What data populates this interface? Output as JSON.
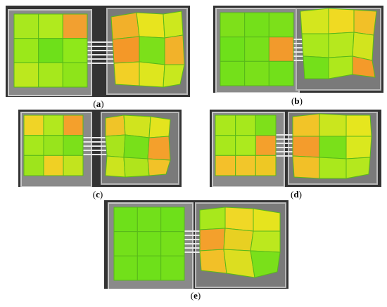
{
  "figure": {
    "panels": [
      {
        "id": "a",
        "caption": "a",
        "left_grid": [
          [
            "#a8e81e",
            "#b0ea1e",
            "#f2a030"
          ],
          [
            "#9be81a",
            "#6ee01a",
            "#8fe81a"
          ],
          [
            "#bce81e",
            "#a6e81c",
            "#8ee41a"
          ]
        ],
        "right_grid": [
          [
            "#f2b02a",
            "#e8e41e",
            "#cde81e"
          ],
          [
            "#f49828",
            "#7ce01a",
            "#f2b22a"
          ],
          [
            "#f2d026",
            "#dee61e",
            "#c8e81e"
          ]
        ]
      },
      {
        "id": "b",
        "caption": "b",
        "left_grid": [
          [
            "#7ee01a",
            "#74e01a",
            "#7ce01a"
          ],
          [
            "#6ee01a",
            "#78e01a",
            "#f29a2c"
          ],
          [
            "#74e01a",
            "#7ae01a",
            "#72e01a"
          ]
        ],
        "right_grid": [
          [
            "#d4e61e",
            "#f0da22",
            "#f2c028"
          ],
          [
            "#aae81c",
            "#b6e81e",
            "#d2e41e"
          ],
          [
            "#74e01a",
            "#aee81c",
            "#f49a2a"
          ]
        ]
      },
      {
        "id": "c",
        "caption": "c",
        "left_grid": [
          [
            "#f0d426",
            "#b2e81e",
            "#f4a02c"
          ],
          [
            "#a6e81c",
            "#98e41c",
            "#7ce01a"
          ],
          [
            "#9ee41c",
            "#f0d024",
            "#c2e41e"
          ]
        ],
        "right_grid": [
          [
            "#f0c428",
            "#d0e41e",
            "#e4e41e"
          ],
          [
            "#a8e41c",
            "#78e01a",
            "#f4a02c"
          ],
          [
            "#cce41e",
            "#b0e41c",
            "#f2c228"
          ]
        ]
      },
      {
        "id": "d",
        "caption": "d",
        "left_grid": [
          [
            "#aae81c",
            "#a6e81c",
            "#7ee01a"
          ],
          [
            "#a8e81c",
            "#acea1e",
            "#f4a02c"
          ],
          [
            "#f4c02a",
            "#f2c62a",
            "#eec824"
          ]
        ],
        "right_grid": [
          [
            "#f2c428",
            "#cae61e",
            "#e6e61e"
          ],
          [
            "#f49c2c",
            "#7ae01a",
            "#dae81e"
          ],
          [
            "#f2c028",
            "#aae81c",
            "#b4e81e"
          ]
        ]
      },
      {
        "id": "e",
        "caption": "e",
        "left_grid": [
          [
            "#6ee01a",
            "#72e01a",
            "#6ee01a"
          ],
          [
            "#74e01a",
            "#70e01a",
            "#76e01a"
          ],
          [
            "#72e01a",
            "#6ee01a",
            "#74e01a"
          ]
        ],
        "right_grid": [
          [
            "#a8e81c",
            "#f0d826",
            "#e6e41e"
          ],
          [
            "#f4a02c",
            "#e8d022",
            "#bce81e"
          ],
          [
            "#f2c028",
            "#dcde20",
            "#7ae01a"
          ]
        ]
      }
    ]
  }
}
